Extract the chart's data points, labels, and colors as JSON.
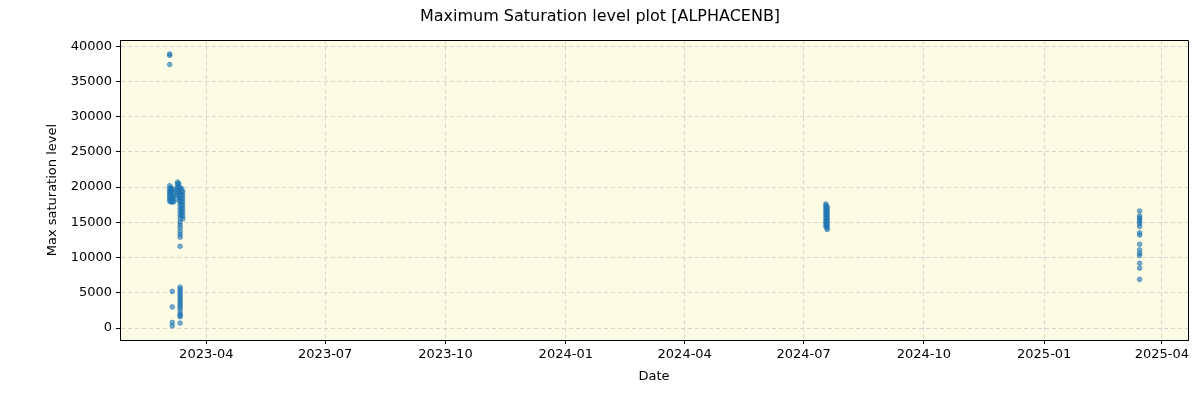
{
  "chart_data": {
    "type": "scatter",
    "title": "Maximum Saturation level plot [ALPHACENB]",
    "xlabel": "Date",
    "ylabel": "Max saturation level",
    "x": [
      "2023-03-04",
      "2023-03-04",
      "2023-03-04",
      "2023-03-04",
      "2023-03-04",
      "2023-03-04",
      "2023-03-04",
      "2023-03-04",
      "2023-03-04",
      "2023-03-04",
      "2023-03-04",
      "2023-03-05",
      "2023-03-05",
      "2023-03-05",
      "2023-03-05",
      "2023-03-06",
      "2023-03-06",
      "2023-03-06",
      "2023-03-06",
      "2023-03-06",
      "2023-03-06",
      "2023-03-06",
      "2023-03-06",
      "2023-03-06",
      "2023-03-06",
      "2023-03-07",
      "2023-03-07",
      "2023-03-07",
      "2023-03-07",
      "2023-03-07",
      "2023-03-10",
      "2023-03-10",
      "2023-03-10",
      "2023-03-10",
      "2023-03-10",
      "2023-03-10",
      "2023-03-11",
      "2023-03-11",
      "2023-03-11",
      "2023-03-11",
      "2023-03-11",
      "2023-03-11",
      "2023-03-11",
      "2023-03-12",
      "2023-03-12",
      "2023-03-12",
      "2023-03-12",
      "2023-03-12",
      "2023-03-12",
      "2023-03-12",
      "2023-03-12",
      "2023-03-12",
      "2023-03-12",
      "2023-03-12",
      "2023-03-12",
      "2023-03-12",
      "2023-03-12",
      "2023-03-12",
      "2023-03-12",
      "2023-03-12",
      "2023-03-12",
      "2023-03-12",
      "2023-03-12",
      "2023-03-12",
      "2023-03-12",
      "2023-03-12",
      "2023-03-12",
      "2023-03-12",
      "2023-03-12",
      "2023-03-12",
      "2023-03-12",
      "2023-03-12",
      "2023-03-12",
      "2023-03-12",
      "2023-03-12",
      "2023-03-13",
      "2023-03-13",
      "2023-03-13",
      "2023-03-13",
      "2023-03-13",
      "2023-03-13",
      "2023-03-13",
      "2023-03-13",
      "2023-03-13",
      "2023-03-14",
      "2023-03-14",
      "2023-03-14",
      "2023-03-14",
      "2023-03-14",
      "2023-03-14",
      "2023-03-14",
      "2023-03-14",
      "2023-03-14",
      "2024-07-18",
      "2024-07-18",
      "2024-07-18",
      "2024-07-18",
      "2024-07-18",
      "2024-07-18",
      "2024-07-18",
      "2024-07-18",
      "2024-07-18",
      "2024-07-18",
      "2024-07-18",
      "2024-07-18",
      "2024-07-19",
      "2024-07-19",
      "2024-07-19",
      "2024-07-19",
      "2024-07-19",
      "2024-07-19",
      "2024-07-19",
      "2024-07-19",
      "2024-07-19",
      "2024-07-19",
      "2024-07-19",
      "2024-07-19",
      "2025-03-15",
      "2025-03-15",
      "2025-03-15",
      "2025-03-15",
      "2025-03-15",
      "2025-03-15",
      "2025-03-15",
      "2025-03-15",
      "2025-03-15",
      "2025-03-15",
      "2025-03-15",
      "2025-03-15",
      "2025-03-15",
      "2025-03-15",
      "2025-03-15",
      "2025-03-15"
    ],
    "values": [
      38900,
      38700,
      37400,
      20200,
      19800,
      19500,
      19200,
      18900,
      18600,
      18300,
      18000,
      19900,
      19400,
      19000,
      17900,
      19600,
      19300,
      18800,
      18500,
      18200,
      17900,
      5200,
      3000,
      800,
      300,
      19700,
      19100,
      18600,
      18200,
      17900,
      20700,
      20400,
      20000,
      19600,
      19200,
      18800,
      20500,
      20100,
      19700,
      19300,
      18900,
      18500,
      18100,
      19900,
      19000,
      18500,
      18000,
      17500,
      17000,
      16500,
      16000,
      15500,
      15000,
      14600,
      14200,
      13700,
      13300,
      12900,
      11600,
      5800,
      5500,
      5200,
      4900,
      4600,
      4300,
      4000,
      3700,
      3400,
      3100,
      2800,
      2400,
      2000,
      1800,
      1600,
      700,
      19800,
      19400,
      18900,
      18400,
      17900,
      17400,
      16900,
      16400,
      15900,
      19400,
      18900,
      18400,
      17900,
      17400,
      16900,
      16400,
      15900,
      15500,
      17600,
      17400,
      17100,
      16800,
      16500,
      16200,
      15900,
      15600,
      15300,
      15000,
      14700,
      14400,
      17200,
      16900,
      16600,
      16300,
      16000,
      15700,
      15400,
      15100,
      14800,
      14500,
      14200,
      14000,
      16600,
      15900,
      15600,
      15400,
      15100,
      14800,
      14400,
      13500,
      13200,
      11900,
      11100,
      10600,
      10300,
      9200,
      8500,
      6900
    ],
    "color": "#1f77b4",
    "marker": "circle",
    "xlim": [
      "2023-01-25",
      "2025-04-21"
    ],
    "xticks": [
      "2023-04",
      "2023-07",
      "2023-10",
      "2024-01",
      "2024-04",
      "2024-07",
      "2024-10",
      "2025-01",
      "2025-04"
    ],
    "ylim": [
      -1700,
      40850
    ],
    "yticks": [
      0,
      5000,
      10000,
      15000,
      20000,
      25000,
      30000,
      35000,
      40000
    ],
    "grid": true
  }
}
